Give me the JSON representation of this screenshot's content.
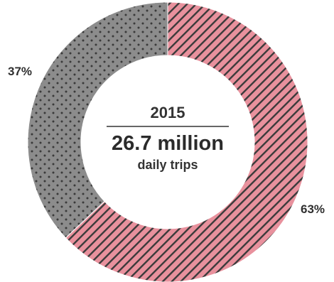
{
  "chart_data": {
    "type": "pie",
    "variant": "donut",
    "title": "",
    "categories": [
      "",
      ""
    ],
    "values": [
      63,
      37
    ],
    "slice_labels": [
      "63%",
      "37%"
    ],
    "slice_colors": [
      "#e8919d",
      "#8c8c8c"
    ],
    "slice_patterns": [
      "diagonal-stripes",
      "dots"
    ],
    "pattern_ink": "#3a3a3a",
    "start_angle_deg": 0,
    "direction": "clockwise",
    "center": {
      "year": "2015",
      "value": "26.7 million",
      "unit": "daily trips"
    }
  }
}
